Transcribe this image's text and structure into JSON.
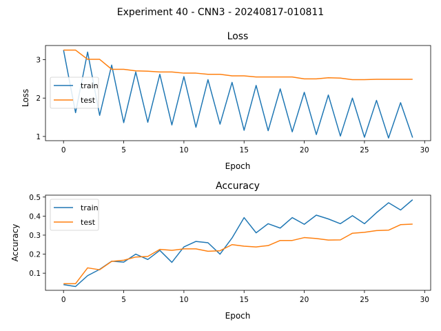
{
  "figure": {
    "suptitle": "Experiment 40 - CNN3 - 20240817-010811"
  },
  "chart_data": [
    {
      "type": "line",
      "title": "Loss",
      "xlabel": "Epoch",
      "ylabel": "Loss",
      "xlim": [
        -1.5,
        30.5
      ],
      "ylim": [
        0.89,
        3.37
      ],
      "xticks": [
        0,
        5,
        10,
        15,
        20,
        25,
        30
      ],
      "yticks": [
        1,
        2,
        3
      ],
      "legend": "center-left",
      "x": [
        0,
        1,
        2,
        3,
        4,
        5,
        6,
        7,
        8,
        9,
        10,
        11,
        12,
        13,
        14,
        15,
        16,
        17,
        18,
        19,
        20,
        21,
        22,
        23,
        24,
        25,
        26,
        27,
        28,
        29
      ],
      "series": [
        {
          "name": "train",
          "color": "#1f77b4",
          "values": [
            3.25,
            1.62,
            3.2,
            1.55,
            2.86,
            1.36,
            2.68,
            1.37,
            2.62,
            1.3,
            2.56,
            1.24,
            2.48,
            1.32,
            2.41,
            1.16,
            2.33,
            1.15,
            2.24,
            1.12,
            2.15,
            1.05,
            2.08,
            1.01,
            2.0,
            0.98,
            1.94,
            0.96,
            1.88,
            0.97
          ]
        },
        {
          "name": "test",
          "color": "#ff7f0e",
          "values": [
            3.25,
            3.25,
            3.01,
            3.01,
            2.75,
            2.75,
            2.71,
            2.7,
            2.68,
            2.68,
            2.65,
            2.65,
            2.62,
            2.62,
            2.58,
            2.58,
            2.55,
            2.55,
            2.55,
            2.55,
            2.5,
            2.5,
            2.53,
            2.52,
            2.48,
            2.48,
            2.49,
            2.49,
            2.49,
            2.49
          ]
        }
      ]
    },
    {
      "type": "line",
      "title": "Accuracy",
      "xlabel": "Epoch",
      "ylabel": "Accuracy",
      "xlim": [
        -1.5,
        30.5
      ],
      "ylim": [
        0.01,
        0.51
      ],
      "xticks": [
        0,
        5,
        10,
        15,
        20,
        25,
        30
      ],
      "yticks": [
        0.1,
        0.2,
        0.3,
        0.4,
        0.5
      ],
      "legend": "top-left",
      "x": [
        0,
        1,
        2,
        3,
        4,
        5,
        6,
        7,
        8,
        9,
        10,
        11,
        12,
        13,
        14,
        15,
        16,
        17,
        18,
        19,
        20,
        21,
        22,
        23,
        24,
        25,
        26,
        27,
        28,
        29
      ],
      "series": [
        {
          "name": "train",
          "color": "#1f77b4",
          "values": [
            0.04,
            0.03,
            0.087,
            0.12,
            0.163,
            0.158,
            0.2,
            0.172,
            0.22,
            0.157,
            0.238,
            0.267,
            0.26,
            0.2,
            0.285,
            0.392,
            0.312,
            0.36,
            0.337,
            0.392,
            0.357,
            0.405,
            0.385,
            0.36,
            0.402,
            0.36,
            0.418,
            0.47,
            0.432,
            0.486
          ]
        },
        {
          "name": "test",
          "color": "#ff7f0e",
          "values": [
            0.045,
            0.045,
            0.128,
            0.118,
            0.162,
            0.168,
            0.185,
            0.188,
            0.225,
            0.22,
            0.228,
            0.228,
            0.215,
            0.218,
            0.25,
            0.242,
            0.238,
            0.245,
            0.272,
            0.272,
            0.287,
            0.282,
            0.274,
            0.275,
            0.31,
            0.315,
            0.324,
            0.326,
            0.355,
            0.358
          ]
        }
      ]
    }
  ]
}
